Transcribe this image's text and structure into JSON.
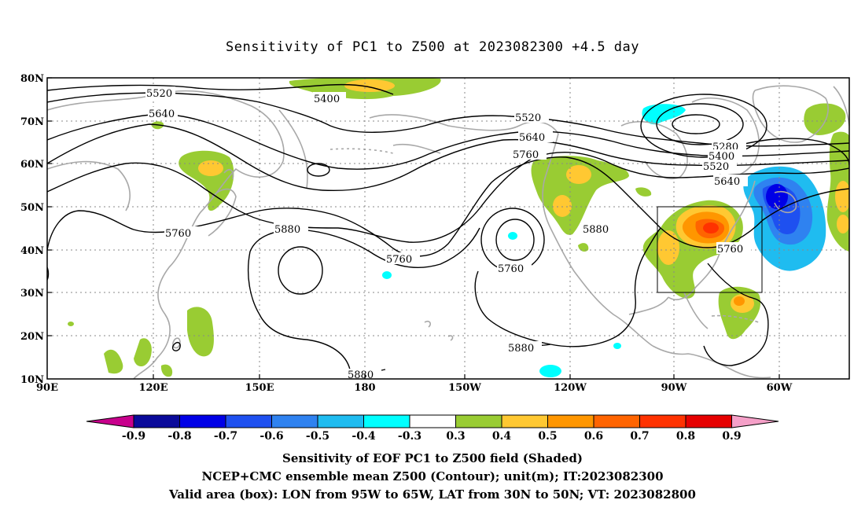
{
  "title": "Sensitivity of PC1 to Z500 at 2023082300 +4.5 day",
  "lat_labels": [
    "80N",
    "70N",
    "60N",
    "50N",
    "40N",
    "30N",
    "20N",
    "10N"
  ],
  "lon_labels": [
    "90E",
    "120E",
    "150E",
    "180",
    "150W",
    "120W",
    "90W",
    "60W"
  ],
  "contour_labels": {
    "c5520a": "5520",
    "c5640a": "5640",
    "c5400a": "5400",
    "c5520b": "5520",
    "c5640b": "5640",
    "c5760a": "5760",
    "c5280": "5280",
    "c5400b": "5400",
    "c5520c": "5520",
    "c5640c": "5640",
    "c5760b": "5760",
    "c5880a": "5880",
    "c5760c": "5760",
    "c5760d": "5760",
    "c5880b": "5880",
    "c5760e": "5760",
    "c5880c": "5880",
    "c5880d": "5880"
  },
  "colorbar": {
    "labels": [
      "-0.9",
      "-0.8",
      "-0.7",
      "-0.6",
      "-0.5",
      "-0.4",
      "-0.3",
      "0.3",
      "0.4",
      "0.5",
      "0.6",
      "0.7",
      "0.8",
      "0.9"
    ],
    "colors": [
      "#c8008c",
      "#0a0a9a",
      "#0000e6",
      "#1e50f0",
      "#2f82f0",
      "#1fbcf0",
      "#00ffff",
      "#ffffff",
      "#99cc33",
      "#ffc832",
      "#ff9600",
      "#ff6400",
      "#ff3200",
      "#e60000",
      "#f5a0c8"
    ]
  },
  "footer": {
    "line1": "Sensitivity of EOF PC1 to Z500 field (Shaded)",
    "line2": "NCEP+CMC ensemble mean Z500 (Contour); unit(m); IT:2023082300",
    "line3": "Valid area (box): LON from 95W to 65W, LAT from 30N to 50N; VT: 2023082800"
  }
}
